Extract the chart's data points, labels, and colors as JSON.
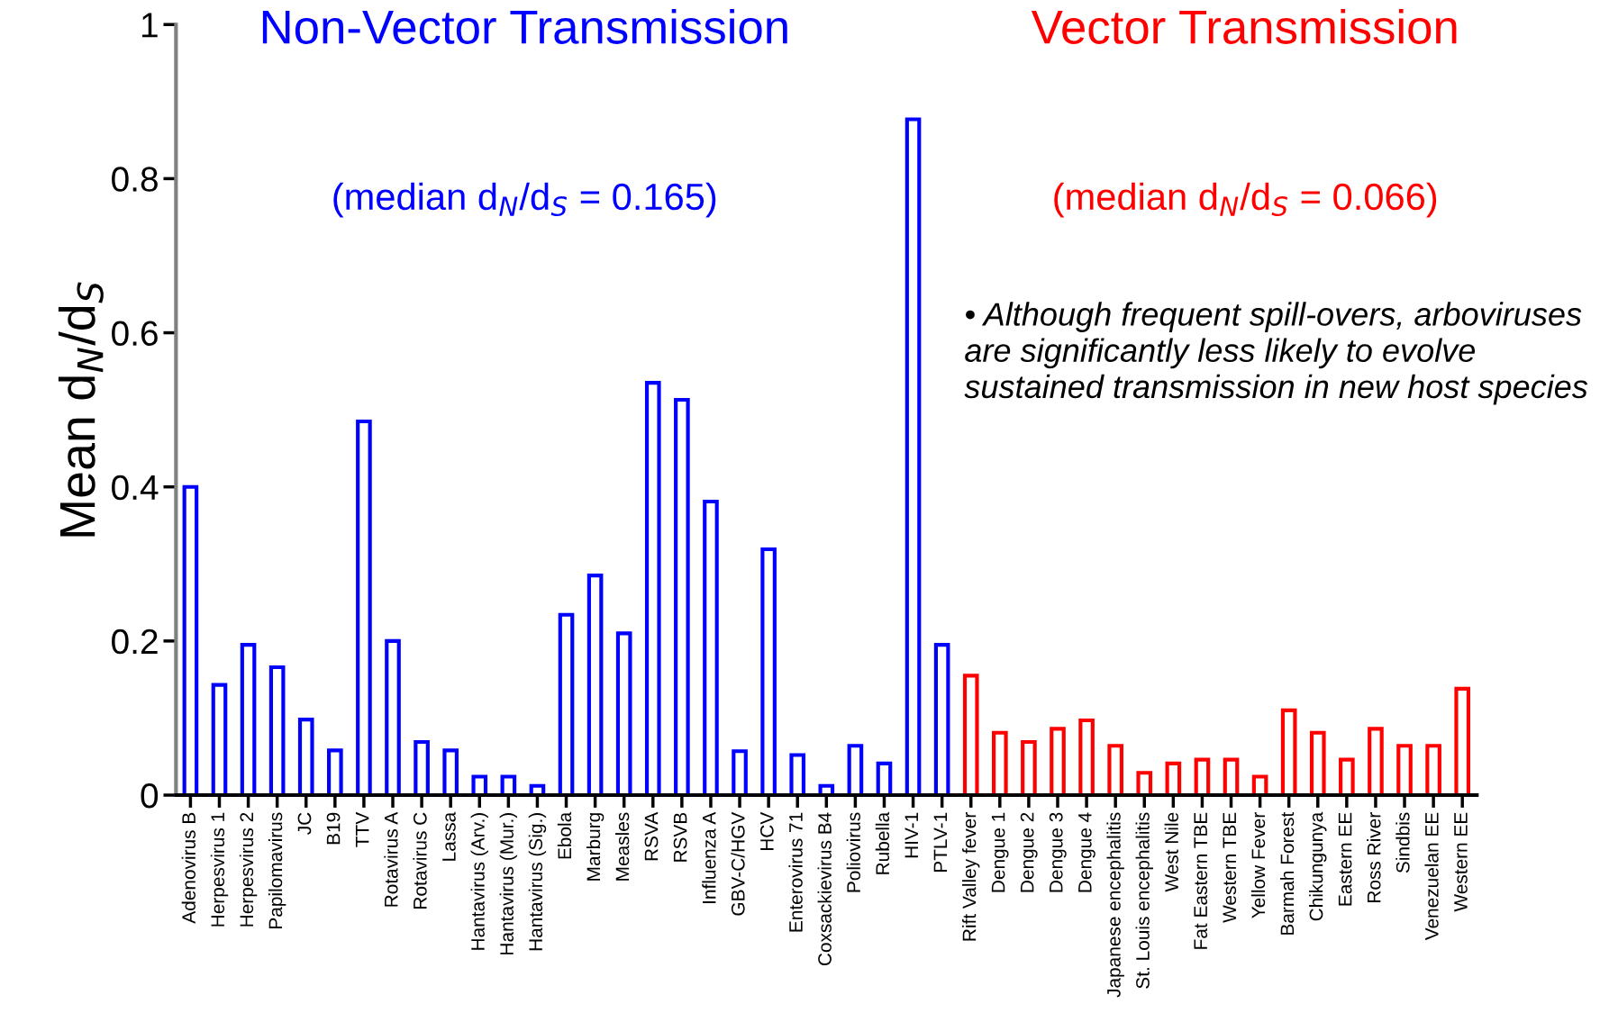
{
  "chart_data": {
    "type": "bar",
    "ylabel": "Mean d$_{N}$/d$_{S}$",
    "categories": [
      "Adenovirus B",
      "Herpesvirus 1",
      "Herpesvirus 2",
      "Papilomavirus",
      "JC",
      "B19",
      "TTV",
      "Rotavirus A",
      "Rotavirus C",
      "Lassa",
      "Hantavirus (Arv.)",
      "Hantavirus (Mur.)",
      "Hantavirus (Sig.)",
      "Ebola",
      "Marburg",
      "Measles",
      "RSVA",
      "RSVB",
      "Influenza A",
      "GBV-C/HGV",
      "HCV",
      "Enterovirus 71",
      "Coxsackievirus B4",
      "Poliovirus",
      "Rubella",
      "HIV-1",
      "PTLV-1",
      "Rift Valley fever",
      "Dengue 1",
      "Dengue 2",
      "Dengue 3",
      "Dengue 4",
      "Japanese encephalitis",
      "St. Louis encephalitis",
      "West Nile",
      "Fat Eastern TBE",
      "Western TBE",
      "Yellow Fever",
      "Barmah Forest",
      "Chikungunya",
      "Eastern EE",
      "Ross River",
      "Sindbis",
      "Venezuelan EE",
      "Western EE"
    ],
    "series": [
      {
        "name": "Non-Vector Transmission",
        "color": "#0000ff",
        "values": [
          0.4,
          0.143,
          0.195,
          0.166,
          0.098,
          0.058,
          0.485,
          0.2,
          0.069,
          0.058,
          0.024,
          0.024,
          0.012,
          0.234,
          0.285,
          0.21,
          0.535,
          0.513,
          0.381,
          0.057,
          0.319,
          0.052,
          0.012,
          0.064,
          0.041,
          0.877,
          0.195,
          null,
          null,
          null,
          null,
          null,
          null,
          null,
          null,
          null,
          null,
          null,
          null,
          null,
          null,
          null,
          null,
          null,
          null
        ]
      },
      {
        "name": "Vector Transmission",
        "color": "#ff0000",
        "values": [
          null,
          null,
          null,
          null,
          null,
          null,
          null,
          null,
          null,
          null,
          null,
          null,
          null,
          null,
          null,
          null,
          null,
          null,
          null,
          null,
          null,
          null,
          null,
          null,
          null,
          null,
          null,
          0.155,
          0.081,
          0.069,
          0.086,
          0.097,
          0.064,
          0.029,
          0.041,
          0.046,
          0.046,
          0.024,
          0.11,
          0.081,
          0.046,
          0.086,
          0.064,
          0.064,
          0.138
        ]
      }
    ],
    "annotations": [
      "(median d$_{N}$/d$_{S}$ = 0.165)",
      "(median d$_{N}$/d$_{S}$ = 0.066)",
      "• Although frequent spill-overs, arboviruses are significantly less likely to evolve sustained transmission in new host species"
    ],
    "ylim": [
      0,
      1
    ],
    "yticks": [
      0,
      0.2,
      0.4,
      0.6,
      0.8,
      1
    ],
    "grid": false,
    "legend": false
  }
}
